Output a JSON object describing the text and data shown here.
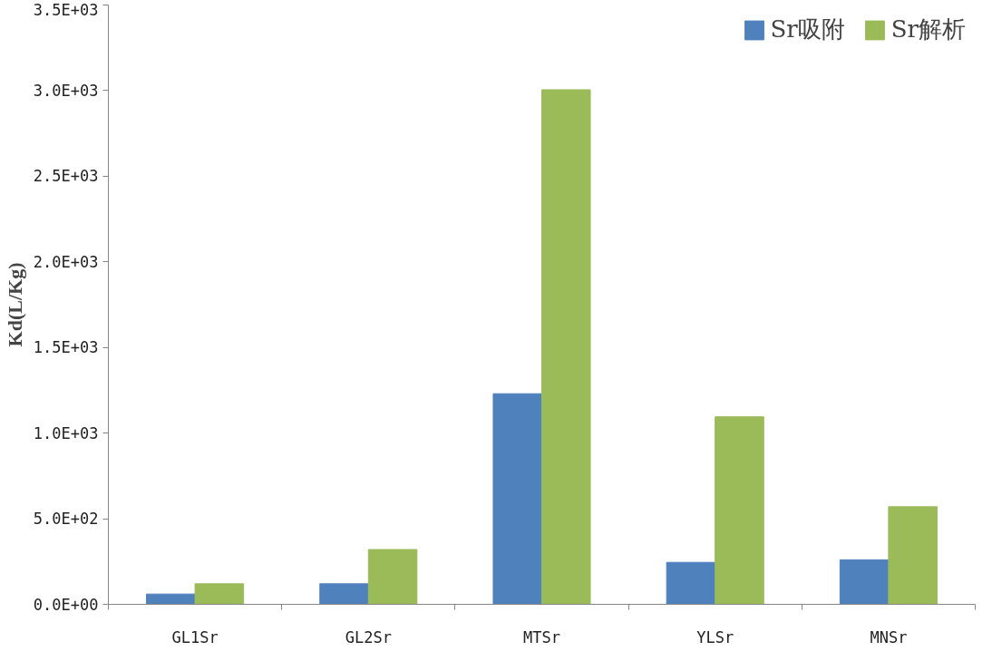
{
  "chart_data": {
    "type": "bar",
    "ylabel": "Kd(L/Kg)",
    "categories": [
      "GL1Sr",
      "GL2Sr",
      "MTSr",
      "YLSr",
      "MNSr"
    ],
    "series": [
      {
        "name": "Sr吸附",
        "color": "#4f81bd",
        "values": [
          60,
          120,
          1230,
          245,
          260
        ]
      },
      {
        "name": "Sr解析",
        "color": "#9bbb59",
        "values": [
          120,
          320,
          3005,
          1095,
          570
        ]
      }
    ],
    "ylim": [
      0,
      3500
    ],
    "yticks": [
      {
        "value": 0,
        "label": "0.0E+00"
      },
      {
        "value": 500,
        "label": "5.0E+02"
      },
      {
        "value": 1000,
        "label": "1.0E+03"
      },
      {
        "value": 1500,
        "label": "1.5E+03"
      },
      {
        "value": 2000,
        "label": "2.0E+03"
      },
      {
        "value": 2500,
        "label": "2.5E+03"
      },
      {
        "value": 3000,
        "label": "3.0E+03"
      },
      {
        "value": 3500,
        "label": "3.5E+03"
      }
    ],
    "grid": false,
    "legend": "top right"
  }
}
